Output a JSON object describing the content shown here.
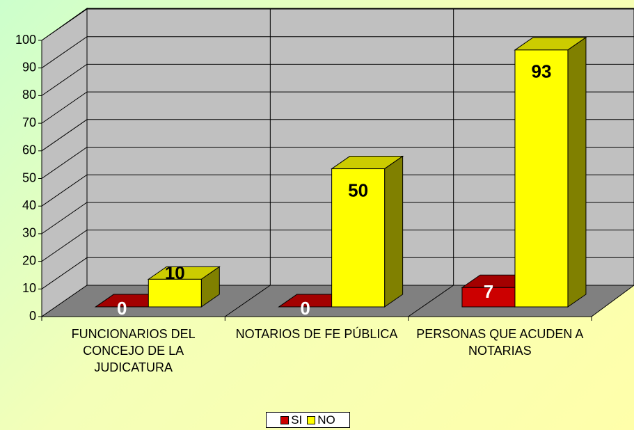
{
  "chart_data": {
    "type": "bar3d",
    "categories": [
      "FUNCIONARIOS DEL CONCEJO DE LA JUDICATURA",
      "NOTARIOS DE FE PÚBLICA",
      "PERSONAS QUE ACUDEN A NOTARIAS"
    ],
    "series": [
      {
        "name": "SI",
        "color": "#cc0000",
        "values": [
          0,
          0,
          7
        ]
      },
      {
        "name": "NO",
        "color": "#ffff00",
        "values": [
          10,
          50,
          93
        ]
      }
    ],
    "ylim": [
      0,
      100
    ],
    "yticks": [
      0,
      10,
      20,
      30,
      40,
      50,
      60,
      70,
      80,
      90,
      100
    ],
    "grid": true,
    "legend": "bottom"
  }
}
